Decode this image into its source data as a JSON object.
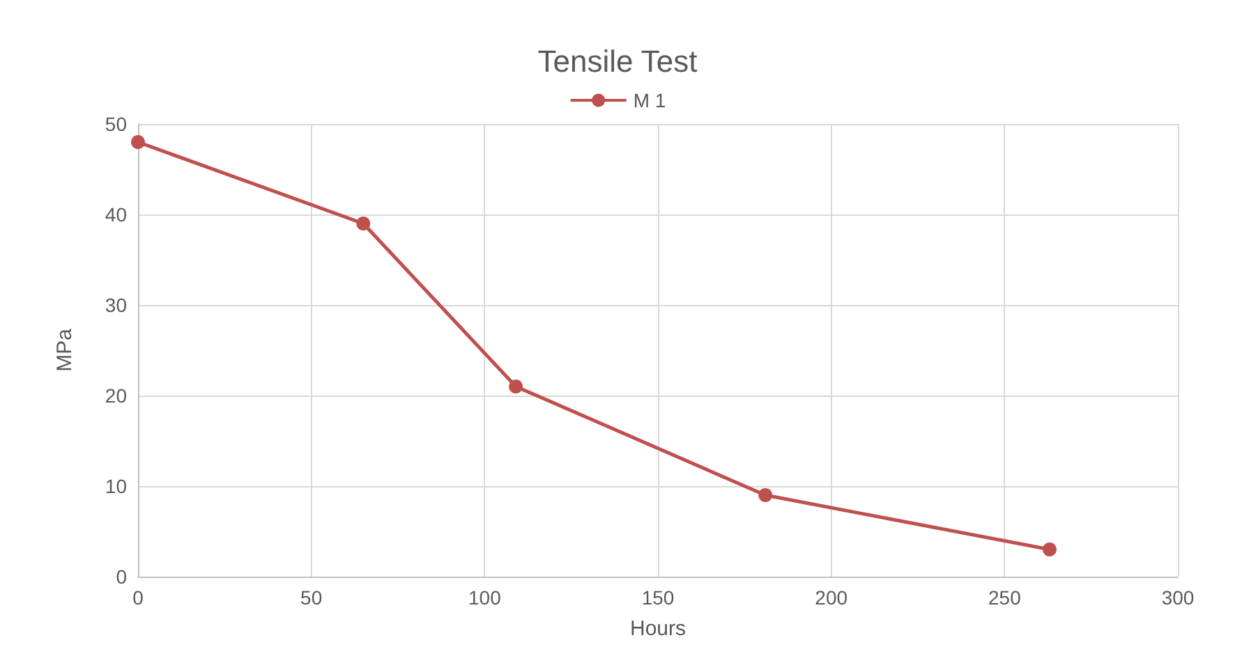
{
  "chart_data": {
    "type": "line",
    "title": "Tensile Test",
    "xlabel": "Hours",
    "ylabel": "MPa",
    "x": [
      0,
      65,
      109,
      181,
      263
    ],
    "series": [
      {
        "name": "M 1",
        "color": "#c0504d",
        "values": [
          48,
          39,
          21,
          9,
          3
        ]
      }
    ],
    "xlim": [
      0,
      300
    ],
    "xticks": [
      0,
      50,
      100,
      150,
      200,
      250,
      300
    ],
    "ylim": [
      0,
      50
    ],
    "yticks": [
      0,
      10,
      20,
      30,
      40,
      50
    ],
    "grid": true,
    "legend": "top",
    "marker": "circle",
    "line_style": "solid"
  }
}
